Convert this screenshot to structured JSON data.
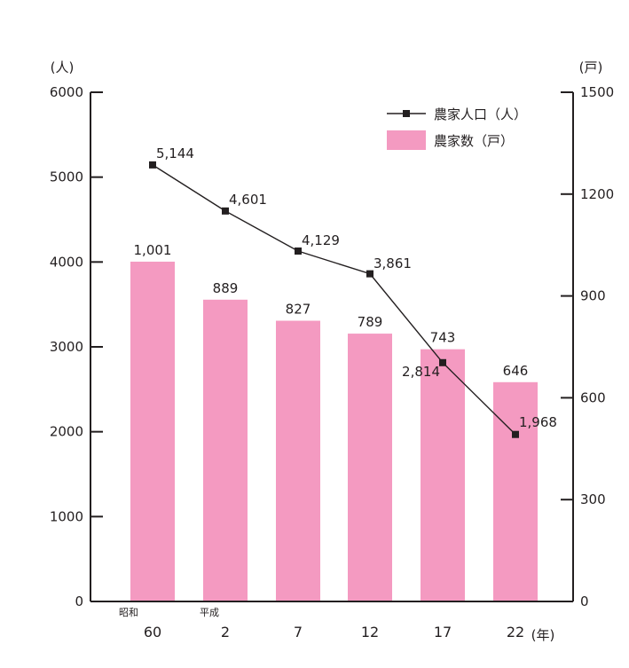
{
  "chart_data": {
    "type": "bar",
    "categories": [
      "60",
      "2",
      "7",
      "12",
      "17",
      "22"
    ],
    "era_labels": [
      "昭和",
      "平成",
      "",
      "",
      "",
      ""
    ],
    "x_unit": "(年)",
    "series": [
      {
        "name": "農家数（戸）",
        "kind": "bar",
        "axis": "right",
        "color": "#f49ac1",
        "values": [
          1001,
          889,
          827,
          789,
          743,
          646
        ],
        "labels": [
          "1,001",
          "889",
          "827",
          "789",
          "743",
          "646"
        ]
      },
      {
        "name": "農家人口（人）",
        "kind": "line",
        "axis": "left",
        "color": "#231f20",
        "values": [
          5144,
          4601,
          4129,
          3861,
          2814,
          1968
        ],
        "labels": [
          "5,144",
          "4,601",
          "4,129",
          "3,861",
          "2,814",
          "1,968"
        ]
      }
    ],
    "left_axis": {
      "unit": "(人)",
      "ylim": [
        0,
        6000
      ],
      "ticks": [
        "0",
        "1000",
        "2000",
        "3000",
        "4000",
        "5000",
        "6000"
      ]
    },
    "right_axis": {
      "unit": "(戸)",
      "ylim": [
        0,
        1500
      ],
      "ticks": [
        "0",
        "300",
        "600",
        "900",
        "1200",
        "1500"
      ]
    },
    "legend": {
      "position": "top-right",
      "entries": [
        "農家人口（人）",
        "農家数（戸）"
      ]
    },
    "grid": false
  }
}
